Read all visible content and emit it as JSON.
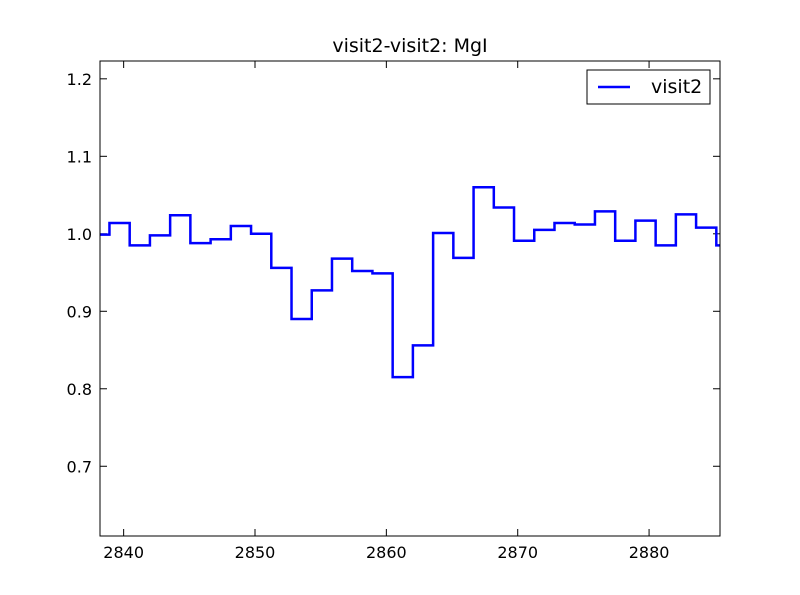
{
  "chart_data": {
    "type": "line",
    "drawstyle": "steps",
    "title": "visit2-visit2: MgI",
    "xlabel": "",
    "ylabel": "",
    "xlim": [
      2838.2,
      2885.4
    ],
    "ylim": [
      0.61,
      1.223
    ],
    "xticks": [
      2840,
      2850,
      2860,
      2870,
      2880
    ],
    "yticks": [
      0.7,
      0.8,
      0.9,
      1.0,
      1.1,
      1.2
    ],
    "xtick_labels": [
      "2840",
      "2850",
      "2860",
      "2870",
      "2880"
    ],
    "ytick_labels": [
      "0.7",
      "0.8",
      "0.9",
      "1.0",
      "1.1",
      "1.2"
    ],
    "legend": {
      "placement": "top-right",
      "entries": [
        "visit2"
      ]
    },
    "grid": false,
    "series": [
      {
        "name": "visit2",
        "color": "#0000ff",
        "x": [
          2838.2,
          2838.92,
          2840.46,
          2842.0,
          2843.54,
          2845.08,
          2846.62,
          2848.16,
          2849.7,
          2851.24,
          2852.78,
          2854.32,
          2855.86,
          2857.4,
          2858.94,
          2860.48,
          2862.02,
          2863.56,
          2865.1,
          2866.64,
          2868.18,
          2869.72,
          2871.26,
          2872.8,
          2874.34,
          2875.88,
          2877.42,
          2878.96,
          2880.5,
          2882.04,
          2883.58,
          2885.12
        ],
        "y": [
          0.999,
          1.014,
          0.985,
          0.998,
          1.024,
          0.988,
          0.993,
          1.01,
          1.0,
          0.956,
          0.89,
          0.927,
          0.968,
          0.952,
          0.949,
          0.815,
          0.856,
          1.001,
          0.969,
          1.06,
          1.034,
          0.991,
          1.005,
          1.014,
          1.012,
          1.029,
          0.991,
          1.017,
          0.985,
          1.025,
          1.008,
          0.985
        ]
      }
    ]
  }
}
